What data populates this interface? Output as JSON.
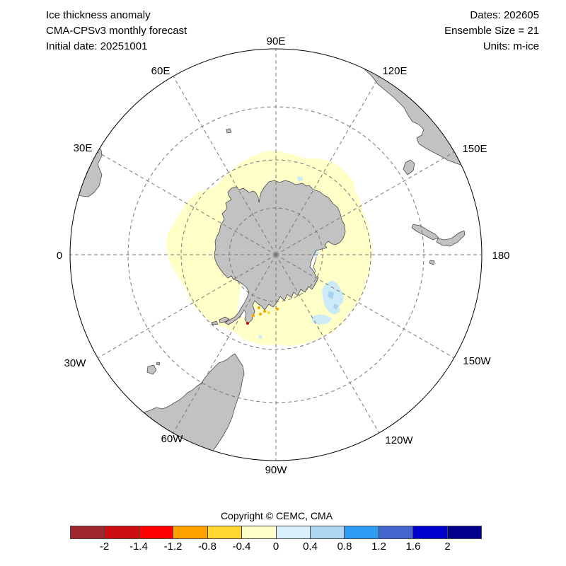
{
  "header": {
    "left": {
      "line1": "Ice thickness anomaly",
      "line2": "CMA-CPSv3 monthly forecast",
      "line3": "Initial date: 20251001"
    },
    "right": {
      "line1": "Dates: 202605",
      "line2": "Ensemble Size = 21",
      "line3": "Units: m-ice"
    }
  },
  "map": {
    "projection_note": "south polar view, 90E at top, 0 at left, 180 at right",
    "grid_labels": [
      "90E",
      "120E",
      "150E",
      "180",
      "150W",
      "120W",
      "90W",
      "60W",
      "30W",
      "0",
      "30E",
      "60E"
    ],
    "colors": {
      "land": "#C2C2C2",
      "coastline": "#4A4A4A",
      "anomaly_neg_0_to_-0.4": "#FFFFC8",
      "anomaly_pos_0_to_0.4": "#CDEAF7",
      "anomaly_pos_0.4_to_0.8": "#A8D3F0",
      "anomaly_spot_orange": "#FFA200",
      "anomaly_spot_red": "#CE0E12",
      "gridline": "#787878",
      "map_edge": "#000000"
    }
  },
  "colorbar": {
    "units": "m-ice",
    "ticks": [
      "-2",
      "-1.4",
      "-1.2",
      "-0.8",
      "-0.4",
      "0",
      "0.4",
      "0.8",
      "1.2",
      "1.6",
      "2"
    ],
    "colors": [
      "#A1282E",
      "#CE0E12",
      "#FE0000",
      "#FFA200",
      "#FFD733",
      "#FFFFC8",
      "#D9F1FB",
      "#AFD9F3",
      "#2F9CF4",
      "#4566CE",
      "#0000CD",
      "#00008B"
    ]
  },
  "footer": {
    "copyright": "Copyright © CEMC, CMA"
  },
  "chart_data": {
    "type": "heatmap",
    "title": "Ice thickness anomaly",
    "subtitle": "CMA-CPSv3 monthly forecast",
    "initial_date": "20251001",
    "forecast_month": "202605",
    "ensemble_size": 21,
    "units": "m-ice",
    "legend_bins": [
      -2,
      -1.4,
      -1.2,
      -0.8,
      -0.4,
      0,
      0.4,
      0.8,
      1.2,
      1.6,
      2
    ],
    "dominant_values": "ring of -0.4 to 0 anomaly around Antarctica; patches of 0 to 0.8 in Ross Sea sector; isolated -0.8 to -1.2 spots near Antarctic Peninsula"
  }
}
